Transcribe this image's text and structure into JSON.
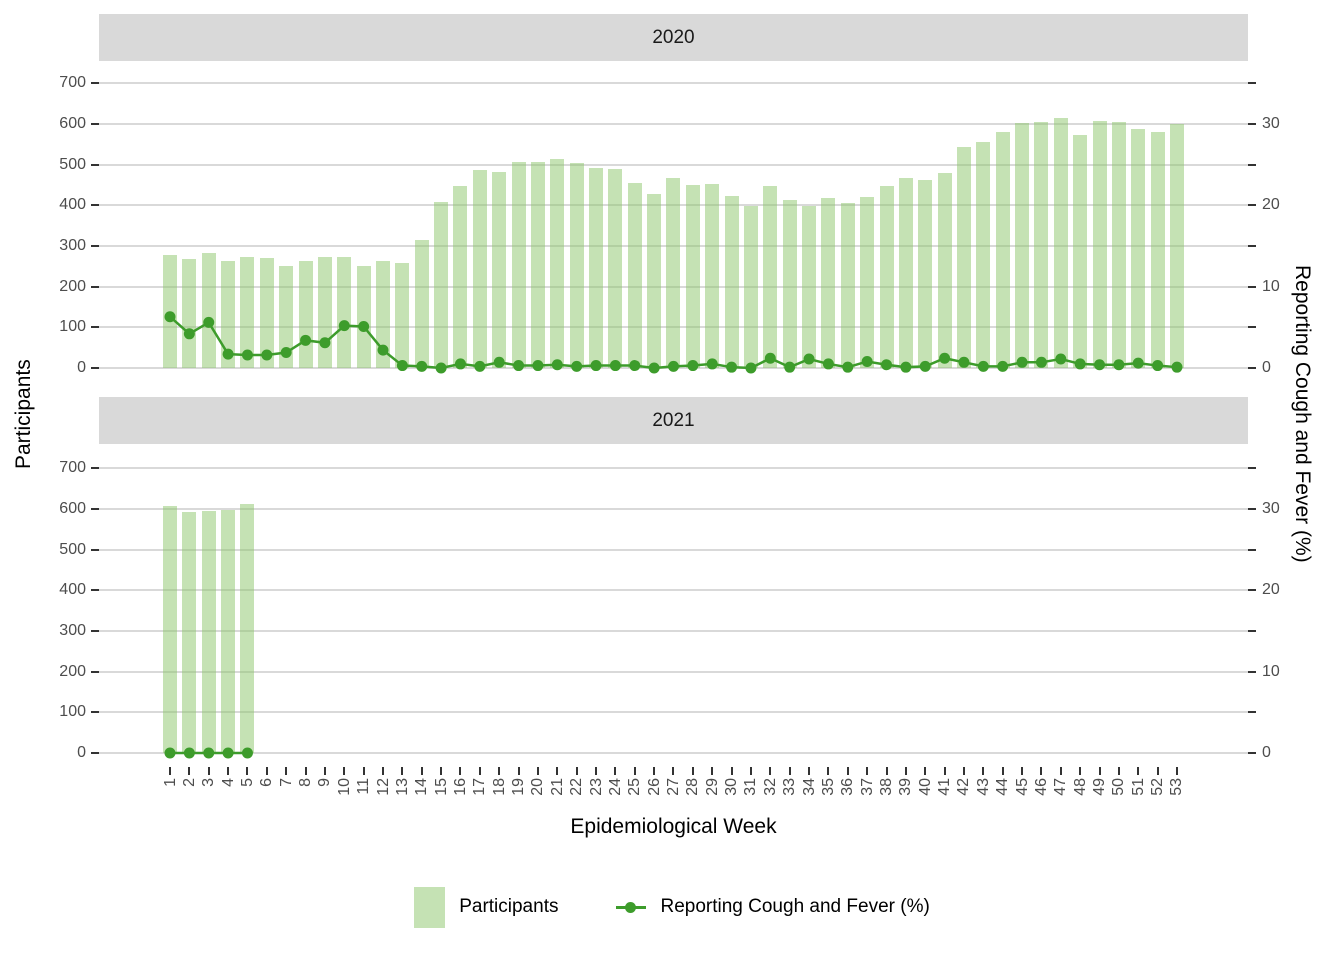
{
  "chart_data": {
    "type": "bar+line",
    "title": "",
    "facets": [
      {
        "label": "2020",
        "weeks": [
          1,
          2,
          3,
          4,
          5,
          6,
          7,
          8,
          9,
          10,
          11,
          12,
          13,
          14,
          15,
          16,
          17,
          18,
          19,
          20,
          21,
          22,
          23,
          24,
          25,
          26,
          27,
          28,
          29,
          30,
          31,
          32,
          33,
          34,
          35,
          36,
          37,
          38,
          39,
          40,
          41,
          42,
          43,
          44,
          45,
          46,
          47,
          48,
          49,
          50,
          51,
          52,
          53
        ],
        "participants": [
          277,
          268,
          283,
          262,
          273,
          271,
          251,
          264,
          273,
          273,
          250,
          263,
          257,
          315,
          407,
          446,
          487,
          481,
          505,
          505,
          513,
          503,
          491,
          488,
          455,
          428,
          468,
          450,
          453,
          423,
          398,
          448,
          413,
          398,
          417,
          405,
          419,
          446,
          466,
          461,
          479,
          543,
          556,
          580,
          601,
          605,
          614,
          572,
          606,
          605,
          587,
          579,
          600
        ],
        "cough_fever_pct": [
          6.3,
          4.2,
          5.6,
          1.7,
          1.6,
          1.6,
          1.9,
          3.4,
          3.1,
          5.2,
          5.1,
          2.2,
          0.3,
          0.2,
          0.0,
          0.5,
          0.2,
          0.7,
          0.3,
          0.3,
          0.4,
          0.2,
          0.3,
          0.3,
          0.3,
          0.0,
          0.2,
          0.3,
          0.5,
          0.1,
          0.0,
          1.2,
          0.1,
          1.1,
          0.5,
          0.1,
          0.8,
          0.4,
          0.1,
          0.2,
          1.2,
          0.7,
          0.2,
          0.2,
          0.7,
          0.7,
          1.1,
          0.5,
          0.4,
          0.4,
          0.6,
          0.3,
          0.1
        ]
      },
      {
        "label": "2021",
        "weeks": [
          1,
          2,
          3,
          4,
          5
        ],
        "participants": [
          607,
          592,
          595,
          597,
          612
        ],
        "cough_fever_pct": [
          0.0,
          0.0,
          0.0,
          0.0,
          0.0
        ]
      }
    ],
    "x_axis": {
      "title": "Epidemiological Week",
      "ticks": [
        "1",
        "2",
        "3",
        "4",
        "5",
        "6",
        "7",
        "8",
        "9",
        "10",
        "11",
        "12",
        "13",
        "14",
        "15",
        "16",
        "17",
        "18",
        "19",
        "20",
        "21",
        "22",
        "23",
        "24",
        "25",
        "26",
        "27",
        "28",
        "29",
        "30",
        "31",
        "32",
        "33",
        "34",
        "35",
        "36",
        "37",
        "38",
        "39",
        "40",
        "41",
        "42",
        "43",
        "44",
        "45",
        "46",
        "47",
        "48",
        "49",
        "50",
        "51",
        "52",
        "53"
      ]
    },
    "left_axis": {
      "title": "Participants",
      "ticks": [
        0,
        100,
        200,
        300,
        400,
        500,
        600,
        700
      ],
      "range": [
        0,
        735
      ]
    },
    "right_axis": {
      "title": "Reporting Cough and Fever (%)",
      "labeled_ticks": [
        0,
        10,
        20,
        30
      ],
      "tick_positions_pct": [
        0,
        5,
        10,
        15,
        20,
        25,
        30,
        35
      ],
      "participants_per_pct": 20
    },
    "legend": [
      {
        "label": "Participants",
        "symbol": "square"
      },
      {
        "label": "Reporting Cough and Fever (%)",
        "symbol": "line-point"
      }
    ],
    "layout": {
      "grid": "on",
      "legend_position": "bottom",
      "facet_rows": 2
    },
    "colors": {
      "bar_fill": "rgba(140,198,106,0.5)",
      "line": "#3d9c2b",
      "strip_bg": "#d9d9d9",
      "gridline": "#d9d9d9",
      "tick_text": "#4d4d4d",
      "tick_mark": "#333333",
      "axis_title_text": "#000000"
    }
  }
}
